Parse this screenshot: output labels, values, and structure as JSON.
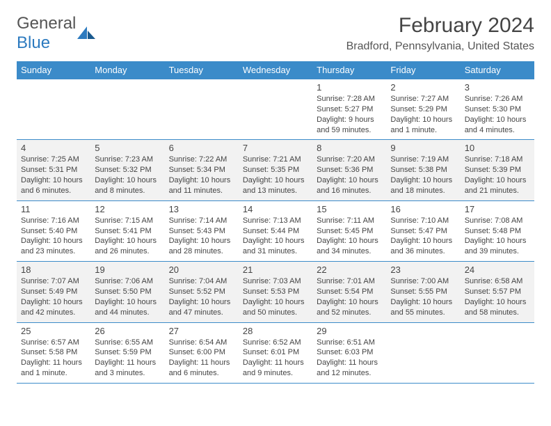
{
  "brand": {
    "general": "General",
    "blue": "Blue"
  },
  "title": "February 2024",
  "location": "Bradford, Pennsylvania, United States",
  "colors": {
    "header_bg": "#3b8bc9",
    "header_text": "#ffffff",
    "alt_row_bg": "#f2f2f2",
    "text": "#444444",
    "border": "#3b8bc9",
    "logo_blue": "#2c7abf",
    "logo_gray": "#555555"
  },
  "day_headers": [
    "Sunday",
    "Monday",
    "Tuesday",
    "Wednesday",
    "Thursday",
    "Friday",
    "Saturday"
  ],
  "weeks": [
    [
      null,
      null,
      null,
      null,
      {
        "n": "1",
        "sr": "Sunrise: 7:28 AM",
        "ss": "Sunset: 5:27 PM",
        "dl1": "Daylight: 9 hours",
        "dl2": "and 59 minutes."
      },
      {
        "n": "2",
        "sr": "Sunrise: 7:27 AM",
        "ss": "Sunset: 5:29 PM",
        "dl1": "Daylight: 10 hours",
        "dl2": "and 1 minute."
      },
      {
        "n": "3",
        "sr": "Sunrise: 7:26 AM",
        "ss": "Sunset: 5:30 PM",
        "dl1": "Daylight: 10 hours",
        "dl2": "and 4 minutes."
      }
    ],
    [
      {
        "n": "4",
        "sr": "Sunrise: 7:25 AM",
        "ss": "Sunset: 5:31 PM",
        "dl1": "Daylight: 10 hours",
        "dl2": "and 6 minutes."
      },
      {
        "n": "5",
        "sr": "Sunrise: 7:23 AM",
        "ss": "Sunset: 5:32 PM",
        "dl1": "Daylight: 10 hours",
        "dl2": "and 8 minutes."
      },
      {
        "n": "6",
        "sr": "Sunrise: 7:22 AM",
        "ss": "Sunset: 5:34 PM",
        "dl1": "Daylight: 10 hours",
        "dl2": "and 11 minutes."
      },
      {
        "n": "7",
        "sr": "Sunrise: 7:21 AM",
        "ss": "Sunset: 5:35 PM",
        "dl1": "Daylight: 10 hours",
        "dl2": "and 13 minutes."
      },
      {
        "n": "8",
        "sr": "Sunrise: 7:20 AM",
        "ss": "Sunset: 5:36 PM",
        "dl1": "Daylight: 10 hours",
        "dl2": "and 16 minutes."
      },
      {
        "n": "9",
        "sr": "Sunrise: 7:19 AM",
        "ss": "Sunset: 5:38 PM",
        "dl1": "Daylight: 10 hours",
        "dl2": "and 18 minutes."
      },
      {
        "n": "10",
        "sr": "Sunrise: 7:18 AM",
        "ss": "Sunset: 5:39 PM",
        "dl1": "Daylight: 10 hours",
        "dl2": "and 21 minutes."
      }
    ],
    [
      {
        "n": "11",
        "sr": "Sunrise: 7:16 AM",
        "ss": "Sunset: 5:40 PM",
        "dl1": "Daylight: 10 hours",
        "dl2": "and 23 minutes."
      },
      {
        "n": "12",
        "sr": "Sunrise: 7:15 AM",
        "ss": "Sunset: 5:41 PM",
        "dl1": "Daylight: 10 hours",
        "dl2": "and 26 minutes."
      },
      {
        "n": "13",
        "sr": "Sunrise: 7:14 AM",
        "ss": "Sunset: 5:43 PM",
        "dl1": "Daylight: 10 hours",
        "dl2": "and 28 minutes."
      },
      {
        "n": "14",
        "sr": "Sunrise: 7:13 AM",
        "ss": "Sunset: 5:44 PM",
        "dl1": "Daylight: 10 hours",
        "dl2": "and 31 minutes."
      },
      {
        "n": "15",
        "sr": "Sunrise: 7:11 AM",
        "ss": "Sunset: 5:45 PM",
        "dl1": "Daylight: 10 hours",
        "dl2": "and 34 minutes."
      },
      {
        "n": "16",
        "sr": "Sunrise: 7:10 AM",
        "ss": "Sunset: 5:47 PM",
        "dl1": "Daylight: 10 hours",
        "dl2": "and 36 minutes."
      },
      {
        "n": "17",
        "sr": "Sunrise: 7:08 AM",
        "ss": "Sunset: 5:48 PM",
        "dl1": "Daylight: 10 hours",
        "dl2": "and 39 minutes."
      }
    ],
    [
      {
        "n": "18",
        "sr": "Sunrise: 7:07 AM",
        "ss": "Sunset: 5:49 PM",
        "dl1": "Daylight: 10 hours",
        "dl2": "and 42 minutes."
      },
      {
        "n": "19",
        "sr": "Sunrise: 7:06 AM",
        "ss": "Sunset: 5:50 PM",
        "dl1": "Daylight: 10 hours",
        "dl2": "and 44 minutes."
      },
      {
        "n": "20",
        "sr": "Sunrise: 7:04 AM",
        "ss": "Sunset: 5:52 PM",
        "dl1": "Daylight: 10 hours",
        "dl2": "and 47 minutes."
      },
      {
        "n": "21",
        "sr": "Sunrise: 7:03 AM",
        "ss": "Sunset: 5:53 PM",
        "dl1": "Daylight: 10 hours",
        "dl2": "and 50 minutes."
      },
      {
        "n": "22",
        "sr": "Sunrise: 7:01 AM",
        "ss": "Sunset: 5:54 PM",
        "dl1": "Daylight: 10 hours",
        "dl2": "and 52 minutes."
      },
      {
        "n": "23",
        "sr": "Sunrise: 7:00 AM",
        "ss": "Sunset: 5:55 PM",
        "dl1": "Daylight: 10 hours",
        "dl2": "and 55 minutes."
      },
      {
        "n": "24",
        "sr": "Sunrise: 6:58 AM",
        "ss": "Sunset: 5:57 PM",
        "dl1": "Daylight: 10 hours",
        "dl2": "and 58 minutes."
      }
    ],
    [
      {
        "n": "25",
        "sr": "Sunrise: 6:57 AM",
        "ss": "Sunset: 5:58 PM",
        "dl1": "Daylight: 11 hours",
        "dl2": "and 1 minute."
      },
      {
        "n": "26",
        "sr": "Sunrise: 6:55 AM",
        "ss": "Sunset: 5:59 PM",
        "dl1": "Daylight: 11 hours",
        "dl2": "and 3 minutes."
      },
      {
        "n": "27",
        "sr": "Sunrise: 6:54 AM",
        "ss": "Sunset: 6:00 PM",
        "dl1": "Daylight: 11 hours",
        "dl2": "and 6 minutes."
      },
      {
        "n": "28",
        "sr": "Sunrise: 6:52 AM",
        "ss": "Sunset: 6:01 PM",
        "dl1": "Daylight: 11 hours",
        "dl2": "and 9 minutes."
      },
      {
        "n": "29",
        "sr": "Sunrise: 6:51 AM",
        "ss": "Sunset: 6:03 PM",
        "dl1": "Daylight: 11 hours",
        "dl2": "and 12 minutes."
      },
      null,
      null
    ]
  ]
}
